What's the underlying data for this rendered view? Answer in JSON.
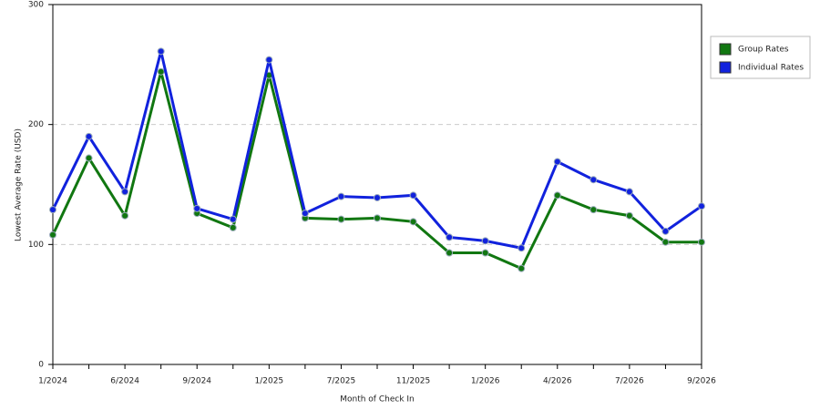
{
  "chart_data": {
    "type": "line",
    "xlabel": "Month of Check In",
    "ylabel": "Lowest Average Rate (USD)",
    "categories": [
      "1/2024",
      null,
      "6/2024",
      null,
      "9/2024",
      null,
      "1/2025",
      null,
      "7/2025",
      null,
      "11/2025",
      null,
      "1/2026",
      null,
      "4/2026",
      null,
      "7/2026",
      null,
      "9/2026"
    ],
    "series": [
      {
        "name": "Group Rates",
        "color": "#117711",
        "values": [
          108,
          172,
          124,
          244,
          126,
          114,
          241,
          122,
          121,
          122,
          119,
          93,
          93,
          80,
          141,
          129,
          124,
          102,
          102
        ]
      },
      {
        "name": "Individual Rates",
        "color": "#1122dd",
        "values": [
          129,
          190,
          144,
          261,
          130,
          121,
          254,
          126,
          140,
          139,
          141,
          106,
          103,
          97,
          169,
          154,
          144,
          111,
          132
        ]
      }
    ],
    "ylim": [
      0,
      300
    ],
    "yticks": [
      0,
      100,
      200,
      300
    ],
    "grid": true,
    "legend": "right"
  }
}
